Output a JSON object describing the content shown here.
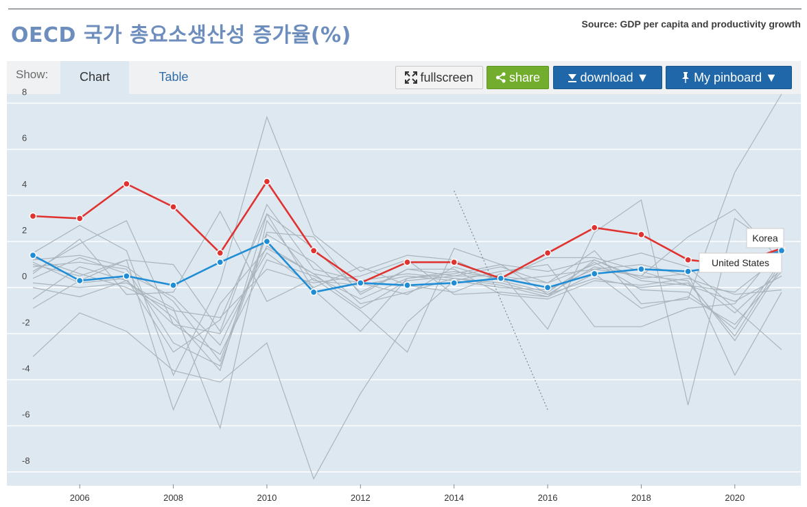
{
  "header": {
    "title": "OECD 국가 총요소생산성 증가율(%)",
    "source": "Source: GDP per capita and productivity growth"
  },
  "toolbar": {
    "show_label": "Show:",
    "tabs": [
      {
        "label": "Chart",
        "active": true
      },
      {
        "label": "Table",
        "active": false
      }
    ],
    "fullscreen_label": "fullscreen",
    "share_label": "share",
    "download_label": "download ▼",
    "pinboard_label": "My pinboard ▼"
  },
  "colors": {
    "korea": "#e0322f",
    "united_states": "#1f8dd6",
    "other": "#a9b4bc",
    "background": "#dde8f1",
    "grid": "#ffffff"
  },
  "chart_data": {
    "type": "line",
    "title": "OECD 국가 총요소생산성 증가율(%)",
    "xlabel": "",
    "ylabel": "",
    "xlim": [
      2005,
      2021
    ],
    "ylim": [
      -8.6,
      8.4
    ],
    "x": [
      2005,
      2006,
      2007,
      2008,
      2009,
      2010,
      2011,
      2012,
      2013,
      2014,
      2015,
      2016,
      2017,
      2018,
      2019,
      2020,
      2021
    ],
    "x_ticks": [
      2006,
      2008,
      2010,
      2012,
      2014,
      2016,
      2018,
      2020
    ],
    "y_ticks": [
      8,
      6,
      4,
      2,
      0,
      -2,
      -4,
      -6,
      -8
    ],
    "grid": true,
    "series": [
      {
        "name": "Korea",
        "highlight": true,
        "values": [
          3.1,
          3.0,
          4.5,
          3.5,
          1.5,
          4.6,
          1.6,
          0.2,
          1.1,
          1.1,
          0.4,
          1.5,
          2.6,
          2.3,
          1.2,
          1.0,
          1.7
        ]
      },
      {
        "name": "United States",
        "highlight": true,
        "values": [
          1.4,
          0.3,
          0.5,
          0.1,
          1.1,
          2.0,
          -0.2,
          0.2,
          0.1,
          0.2,
          0.4,
          0.0,
          0.6,
          0.8,
          0.7,
          1.0,
          1.6
        ]
      },
      {
        "values": [
          -3.0,
          -1.1,
          -1.9,
          -3.6,
          -4.1,
          -2.4,
          -8.3,
          -4.6,
          -1.5,
          0.3,
          0.7,
          1.0,
          -1.7,
          -1.7,
          -0.9,
          -0.7,
          1.8
        ]
      },
      {
        "values": [
          1.5,
          2.7,
          1.6,
          -3.8,
          0.2,
          7.4,
          2.3,
          0.7,
          1.4,
          1.2,
          0.3,
          -0.2,
          1.1,
          -0.1,
          -0.2,
          -1.8,
          1.2
        ]
      },
      {
        "values": [
          1.0,
          0.5,
          1.2,
          1.0,
          -1.9,
          3.6,
          0.8,
          0.3,
          0.6,
          0.4,
          0.2,
          -0.3,
          0.4,
          0.0,
          0.2,
          -2.1,
          1.1
        ]
      },
      {
        "values": [
          0.7,
          1.9,
          2.9,
          -1.6,
          -2.9,
          1.2,
          0.5,
          -0.5,
          0.4,
          0.6,
          1.0,
          0.7,
          1.2,
          0.4,
          0.6,
          -3.8,
          -0.2
        ]
      },
      {
        "values": [
          0.2,
          0.0,
          0.2,
          -0.9,
          -6.1,
          2.9,
          0.3,
          0.1,
          0.5,
          0.3,
          0.0,
          -0.1,
          0.8,
          0.5,
          0.3,
          -2.3,
          0.9
        ]
      },
      {
        "values": [
          1.2,
          1.4,
          0.9,
          -0.6,
          -3.2,
          2.4,
          2.2,
          -0.3,
          0.8,
          0.5,
          0.9,
          0.2,
          1.0,
          1.5,
          0.9,
          -0.9,
          -2.7
        ]
      },
      {
        "values": [
          -0.5,
          0.9,
          0.3,
          -1.3,
          -3.6,
          3.2,
          -0.1,
          -1.9,
          0.4,
          0.7,
          0.4,
          1.3,
          1.3,
          0.7,
          0.1,
          -0.6,
          0.5
        ]
      },
      {
        "values": [
          0.9,
          1.1,
          0.8,
          -2.4,
          -3.4,
          2.3,
          1.1,
          -0.7,
          -0.2,
          0.4,
          0.1,
          -0.4,
          1.2,
          0.3,
          0.1,
          -0.2,
          1.4
        ]
      },
      {
        "values": [
          0.4,
          1.3,
          0.6,
          -0.4,
          -2.5,
          1.8,
          0.6,
          0.2,
          -0.3,
          0.9,
          0.3,
          0.5,
          0.8,
          1.0,
          0.5,
          -1.1,
          0.8
        ]
      },
      {
        "values": [
          1.3,
          0.6,
          0.0,
          -1.0,
          -1.3,
          0.8,
          0.2,
          0.5,
          1.2,
          -0.3,
          -0.2,
          -0.4,
          0.6,
          -0.9,
          -0.4,
          -1.6,
          0.7
        ]
      },
      {
        "values": [
          0.0,
          -0.4,
          0.3,
          -1.6,
          -2.0,
          1.5,
          0.0,
          0.9,
          0.1,
          -0.2,
          0.6,
          -1.8,
          2.4,
          3.8,
          -5.1,
          3.0,
          1.6
        ]
      },
      {
        "values": [
          -0.9,
          0.3,
          1.2,
          -5.3,
          -0.7,
          1.7,
          0.6,
          -0.9,
          0.3,
          0.5,
          0.5,
          0.2,
          1.6,
          -0.7,
          -0.5,
          5.0,
          8.4
        ]
      },
      {
        "values": [
          0.6,
          2.1,
          -0.3,
          -0.2,
          3.3,
          -0.6,
          0.4,
          -1.0,
          -2.8,
          1.7,
          1.0,
          -0.3,
          0.9,
          0.5,
          2.2,
          3.4,
          1.1
        ]
      },
      {
        "values": [
          1.1,
          0.2,
          0.4,
          -2.8,
          -1.4,
          3.2,
          1.7,
          -0.2,
          0.8,
          0.8,
          -0.3,
          -0.5,
          0.3,
          0.1,
          0.4,
          -0.3,
          -0.1
        ]
      }
    ],
    "dotted_segment": {
      "x": [
        2014,
        2016
      ],
      "values": [
        4.2,
        -5.3
      ]
    },
    "annotations": [
      {
        "text": "Korea",
        "series": "Korea"
      },
      {
        "text": "United States",
        "series": "United States"
      }
    ]
  }
}
